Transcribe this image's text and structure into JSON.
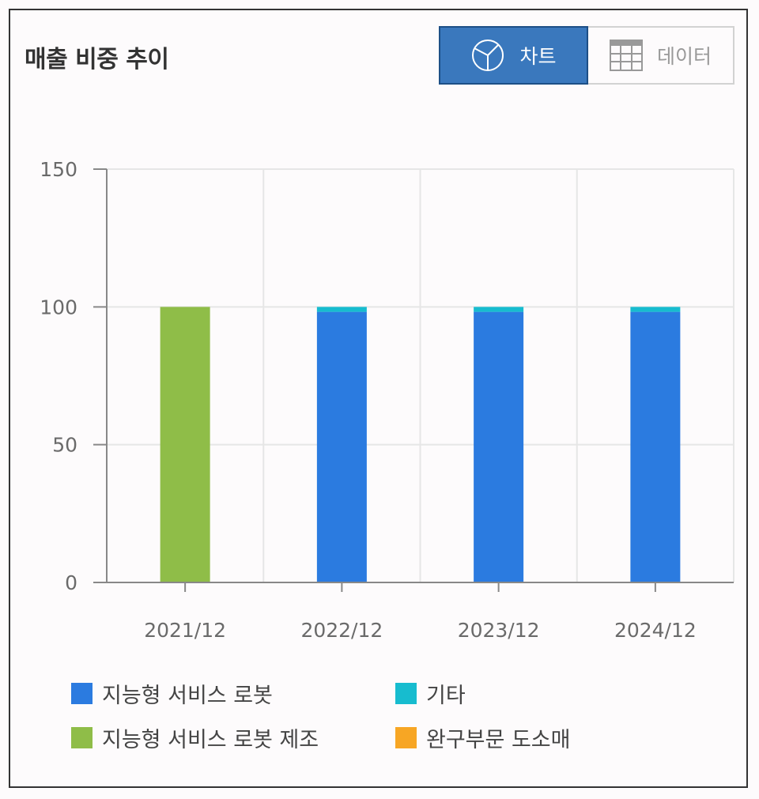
{
  "header": {
    "title": "매출 비중 추이",
    "chart_tab_label": "차트",
    "data_tab_label": "데이터",
    "chart_tab_icon": "pie-chart-icon",
    "data_tab_icon": "table-grid-icon",
    "active_tab": "차트"
  },
  "colors": {
    "accent": "#3a78bd",
    "series_robot_service": "#2b7be0",
    "series_other": "#17bccf",
    "series_robot_manufacture": "#8fbd48",
    "series_toy_retail": "#f7a624"
  },
  "chart_data": {
    "type": "bar",
    "stacked": true,
    "categories": [
      "2021/12",
      "2022/12",
      "2023/12",
      "2024/12"
    ],
    "ylim": [
      0,
      150
    ],
    "yticks": [
      0,
      50,
      100,
      150
    ],
    "grid": true,
    "legend_position": "bottom",
    "series": [
      {
        "name": "지능형 서비스 로봇",
        "color": "#2b7be0",
        "values": [
          0,
          98.2,
          98.2,
          98.2
        ]
      },
      {
        "name": "기타",
        "color": "#17bccf",
        "values": [
          0,
          1.8,
          1.8,
          1.8
        ]
      },
      {
        "name": "지능형 서비스 로봇 제조",
        "color": "#8fbd48",
        "values": [
          100,
          0,
          0,
          0
        ]
      },
      {
        "name": "완구부문 도소매",
        "color": "#f7a624",
        "values": [
          0,
          0,
          0,
          0
        ]
      }
    ]
  }
}
